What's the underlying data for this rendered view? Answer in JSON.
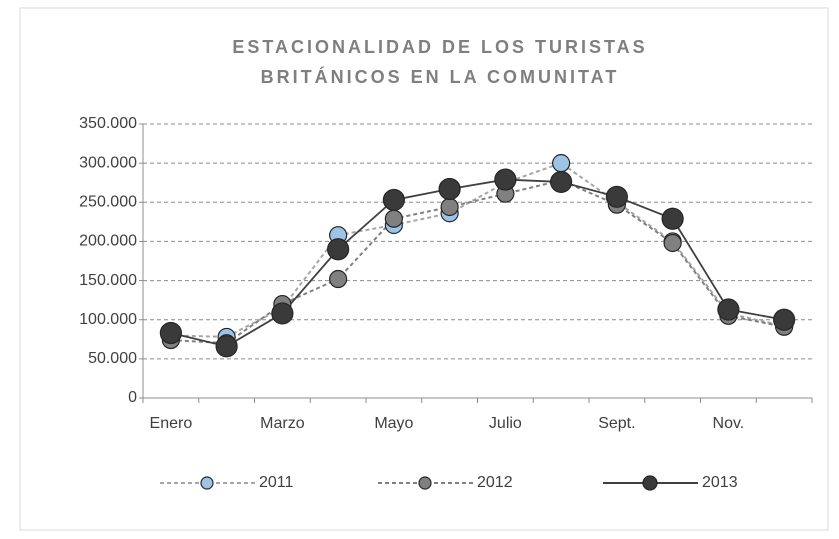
{
  "chart_data": {
    "type": "line",
    "title": [
      "ESTACIONALIDAD DE LOS TURISTAS",
      "BRITÁNICOS EN LA COMUNITAT"
    ],
    "categories": [
      "Enero",
      null,
      "Marzo",
      null,
      "Mayo",
      null,
      "Julio",
      null,
      "Sept.",
      null,
      "Nov.",
      null
    ],
    "series": [
      {
        "name": "2011",
        "color": "#9dc3e6",
        "line_color": "#a6a6a6",
        "line_style": "dashed",
        "values": [
          80000,
          78000,
          115000,
          208000,
          221000,
          236000,
          275000,
          300000,
          250000,
          200000,
          108000,
          92000
        ]
      },
      {
        "name": "2012",
        "color": "#808080",
        "line_color": "#808080",
        "line_style": "dashed",
        "values": [
          74000,
          70000,
          120000,
          152000,
          229000,
          244000,
          261000,
          278000,
          247000,
          198000,
          105000,
          91000
        ]
      },
      {
        "name": "2013",
        "color": "#3a3a3a",
        "line_color": "#404040",
        "line_style": "solid",
        "values": [
          83000,
          66000,
          108000,
          190000,
          253000,
          267000,
          279000,
          276000,
          257000,
          229000,
          113000,
          100000
        ]
      }
    ],
    "ylim": [
      0,
      350000
    ],
    "yticks": [
      0,
      {
        "value": 50000,
        "label": "50.000"
      },
      {
        "value": 100000,
        "label": "100.000"
      },
      {
        "value": 150000,
        "label": "150.000"
      },
      {
        "value": 200000,
        "label": "200.000"
      },
      {
        "value": 250000,
        "label": "250.000"
      },
      {
        "value": 300000,
        "label": "300.000"
      },
      {
        "value": 350000,
        "label": "350.000"
      }
    ],
    "grid": true,
    "legend": "bottom"
  }
}
